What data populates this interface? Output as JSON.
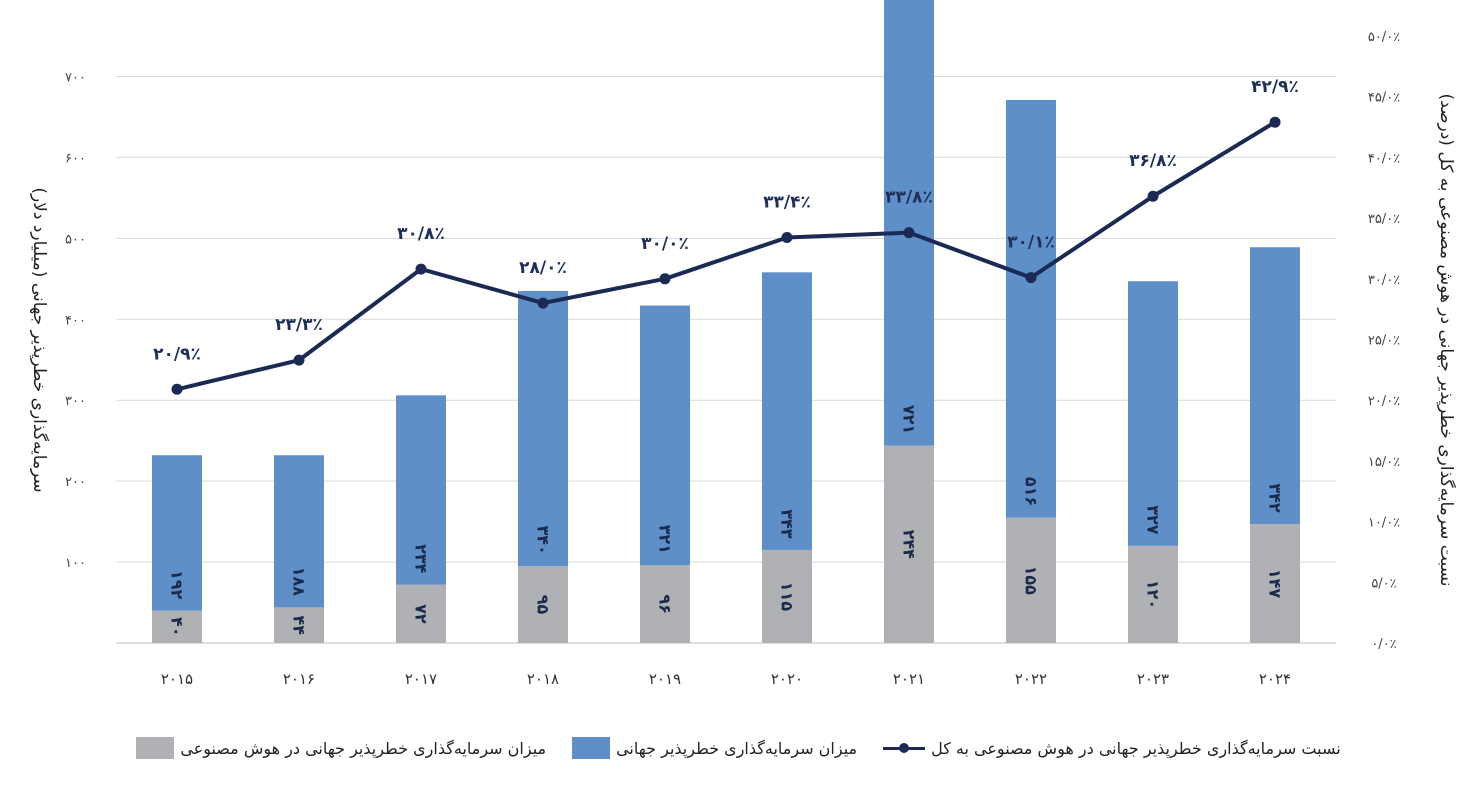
{
  "chart_data": {
    "type": "bar",
    "stacked": true,
    "categories": [
      "۲۰۱۵",
      "۲۰۱۶",
      "۲۰۱۷",
      "۲۰۱۸",
      "۲۰۱۹",
      "۲۰۲۰",
      "۲۰۲۱",
      "۲۰۲۲",
      "۲۰۲۳",
      "۲۰۲۴"
    ],
    "series": [
      {
        "name": "میزان سرمایه‌گذاری خطرپذیر جهانی در هوش مصنوعی",
        "kind": "bar",
        "color": "#b0b1b5",
        "values": [
          40,
          44,
          72,
          95,
          96,
          115,
          244,
          155,
          120,
          147
        ],
        "labels": [
          "۴۰",
          "۴۴",
          "۷۲",
          "۹۵",
          "۹۶",
          "۱۱۵",
          "۲۴۴",
          "۱۵۵",
          "۱۲۰",
          "۱۴۷"
        ]
      },
      {
        "name": "میزان سرمایه‌گذاری خطرپذیر جهانی",
        "kind": "bar",
        "color": "#5f8fc8",
        "values": [
          192,
          188,
          234,
          340,
          321,
          343,
          721,
          516,
          327,
          342
        ],
        "labels": [
          "۱۹۲",
          "۱۸۸",
          "۲۳۴",
          "۳۴۰",
          "۳۲۱",
          "۳۴۳",
          "۷۲۱",
          "۵۱۶",
          "۳۲۷",
          "۳۴۲"
        ]
      },
      {
        "name": "نسبت سرمایه‌گذاری خطرپذیر جهانی در هوش مصنوعی به کل",
        "kind": "line",
        "axis": "right",
        "color": "#1b2a55",
        "values": [
          20.9,
          23.3,
          30.8,
          28.0,
          30.0,
          33.4,
          33.8,
          30.1,
          36.8,
          42.9
        ],
        "labels": [
          "۲۰/۹٪",
          "۲۳/۳٪",
          "۳۰/۸٪",
          "۲۸/۰٪",
          "۳۰/۰٪",
          "۳۳/۴٪",
          "۳۳/۸٪",
          "۳۰/۱٪",
          "۳۶/۸٪",
          "۴۲/۹٪"
        ]
      }
    ],
    "ylabel": "سرمایه‌گذاری خطرپذیر جهانی (میلیارد دلار)",
    "ylabel_right": "نسبت سرمایه‌گذاری خطرپذیر جهانی در هوش مصنوعی به کل (درصد)",
    "ylim": [
      0,
      750
    ],
    "ylim_right": [
      0,
      50
    ],
    "yticks": [
      {
        "value": 100,
        "label": "۱۰۰"
      },
      {
        "value": 200,
        "label": "۲۰۰"
      },
      {
        "value": 300,
        "label": "۳۰۰"
      },
      {
        "value": 400,
        "label": "۴۰۰"
      },
      {
        "value": 500,
        "label": "۵۰۰"
      },
      {
        "value": 600,
        "label": "۶۰۰"
      },
      {
        "value": 700,
        "label": "۷۰۰"
      }
    ],
    "yticks_right": [
      {
        "value": 0,
        "label": "۰/۰٪"
      },
      {
        "value": 5,
        "label": "۵/۰٪"
      },
      {
        "value": 10,
        "label": "۱۰/۰٪"
      },
      {
        "value": 15,
        "label": "۱۵/۰٪"
      },
      {
        "value": 20,
        "label": "۲۰/۰٪"
      },
      {
        "value": 25,
        "label": "۲۵/۰٪"
      },
      {
        "value": 30,
        "label": "۳۰/۰٪"
      },
      {
        "value": 35,
        "label": "۳۵/۰٪"
      },
      {
        "value": 40,
        "label": "۴۰/۰٪"
      },
      {
        "value": 45,
        "label": "۴۵/۰٪"
      },
      {
        "value": 50,
        "label": "۵۰/۰٪"
      }
    ],
    "grid": true,
    "legend_position": "bottom"
  }
}
